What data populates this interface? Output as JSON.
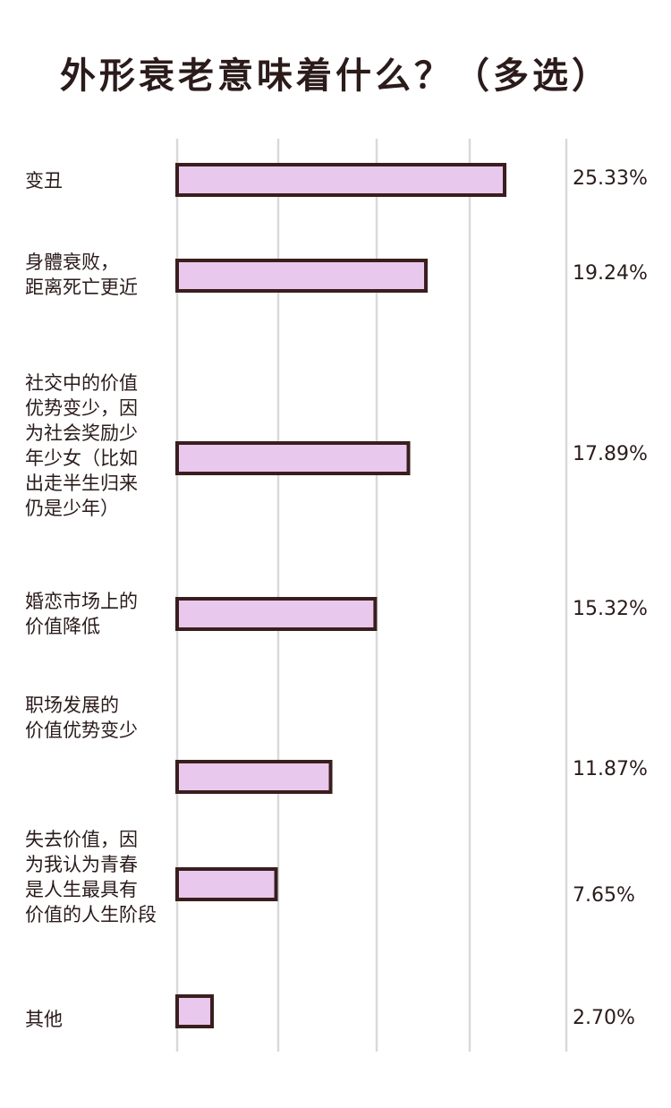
{
  "chart_data": {
    "type": "bar",
    "orientation": "horizontal",
    "title": "外形衰老意味着什么？（多选）",
    "categories": [
      "变丑",
      "身體衰败，\n距离死亡更近",
      "社交中的价值\n优势变少，因\n为社会奖励少\n年少女（比如\n出走半生归来\n仍是少年）",
      "婚恋市场上的\n价值降低",
      "职场发展的\n价值优势变少",
      "失去价值，因\n为我认为青春\n是人生最具有\n价值的人生阶段",
      "其他"
    ],
    "values": [
      25.33,
      19.24,
      17.89,
      15.32,
      11.87,
      7.65,
      2.7
    ],
    "value_labels": [
      "25.33%",
      "19.24%",
      "17.89%",
      "15.32%",
      "11.87%",
      "7.65%",
      "2.70%"
    ],
    "xlim": [
      0,
      32
    ],
    "grid": true,
    "bar_color": "#e8c8ec",
    "bar_outline": "#3a1e1e",
    "grid_color": "#d9d9d9"
  }
}
